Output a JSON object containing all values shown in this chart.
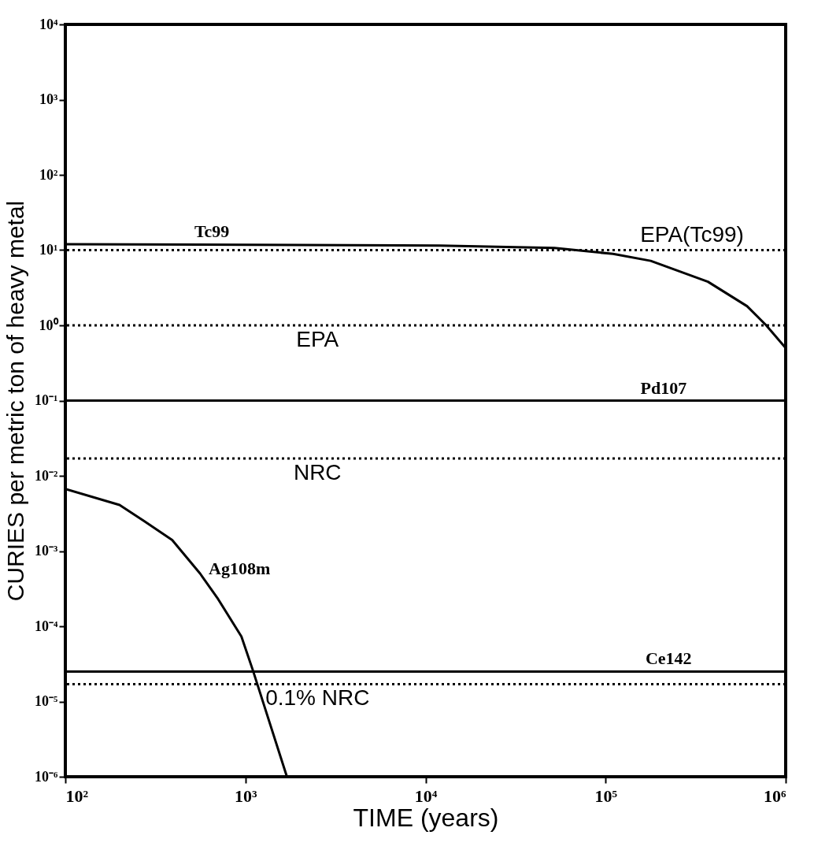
{
  "chart_data": {
    "type": "line",
    "xlabel": "TIME (years)",
    "ylabel": "CURIES per metric ton of heavy metal",
    "log": "xy",
    "grid": false,
    "legend": false,
    "line_style": "solid",
    "marker": "none",
    "xlim": [
      100,
      1000000
    ],
    "ylim": [
      1e-06,
      10000
    ],
    "xticks": [
      {
        "value": 100,
        "label": "10²"
      },
      {
        "value": 1000,
        "label": "10³"
      },
      {
        "value": 10000,
        "label": "10⁴"
      },
      {
        "value": 100000,
        "label": "10⁵"
      },
      {
        "value": 1000000,
        "label": "10⁶"
      }
    ],
    "yticks": [
      {
        "value": 1e-06,
        "label": "10⁻⁶"
      },
      {
        "value": 1e-05,
        "label": "10⁻⁵"
      },
      {
        "value": 0.0001,
        "label": "10⁻⁴"
      },
      {
        "value": 0.001,
        "label": "10⁻³"
      },
      {
        "value": 0.01,
        "label": "10⁻²"
      },
      {
        "value": 0.1,
        "label": "10⁻¹"
      },
      {
        "value": 1,
        "label": "10⁰"
      },
      {
        "value": 10,
        "label": "10¹"
      },
      {
        "value": 100,
        "label": "10²"
      },
      {
        "value": 1000,
        "label": "10³"
      },
      {
        "value": 10000,
        "label": "10⁴"
      }
    ],
    "series": [
      {
        "color": "#000000",
        "x": [
          100,
          12000,
          52000,
          110000,
          178000,
          370000,
          610000,
          780000,
          1000000
        ],
        "values": [
          12,
          11.5,
          10.7,
          8.9,
          7.2,
          3.8,
          1.8,
          1.0,
          0.5
        ]
      },
      {
        "color": "#000000",
        "x": [
          100,
          1000000
        ],
        "values": [
          0.1,
          0.1
        ]
      },
      {
        "color": "#000000",
        "x": [
          100,
          200,
          274,
          392,
          561,
          705,
          950,
          1100,
          1700
        ],
        "values": [
          0.0067,
          0.0041,
          0.0025,
          0.0014,
          0.0005,
          0.00023,
          7.3e-05,
          2.6e-05,
          1e-06
        ]
      },
      {
        "color": "#000000",
        "x": [
          100,
          1000000
        ],
        "values": [
          2.5e-05,
          2.5e-05
        ]
      }
    ],
    "ref_lines": [
      {
        "axis": "y",
        "value": 10,
        "label": "EPA(Tc99)",
        "line_style": "dotted",
        "color": "#000000"
      },
      {
        "axis": "y",
        "value": 1,
        "label": "EPA",
        "line_style": "dotted",
        "color": "#000000"
      },
      {
        "axis": "y",
        "value": 0.017,
        "label": "NRC",
        "line_style": "dotted",
        "color": "#000000"
      },
      {
        "axis": "y",
        "value": 1.7e-05,
        "label": "0.1% NRC",
        "line_style": "dotted",
        "color": "#000000"
      }
    ],
    "annotations": [
      {
        "text": "Tc99",
        "x": 500,
        "y": 12
      },
      {
        "text": "Pd107",
        "x": 150000,
        "y": 0.1
      },
      {
        "text": "Ag108m",
        "x": 600,
        "y": 0.0004
      },
      {
        "text": "Ce142",
        "x": 160000,
        "y": 2.5e-05
      }
    ]
  }
}
